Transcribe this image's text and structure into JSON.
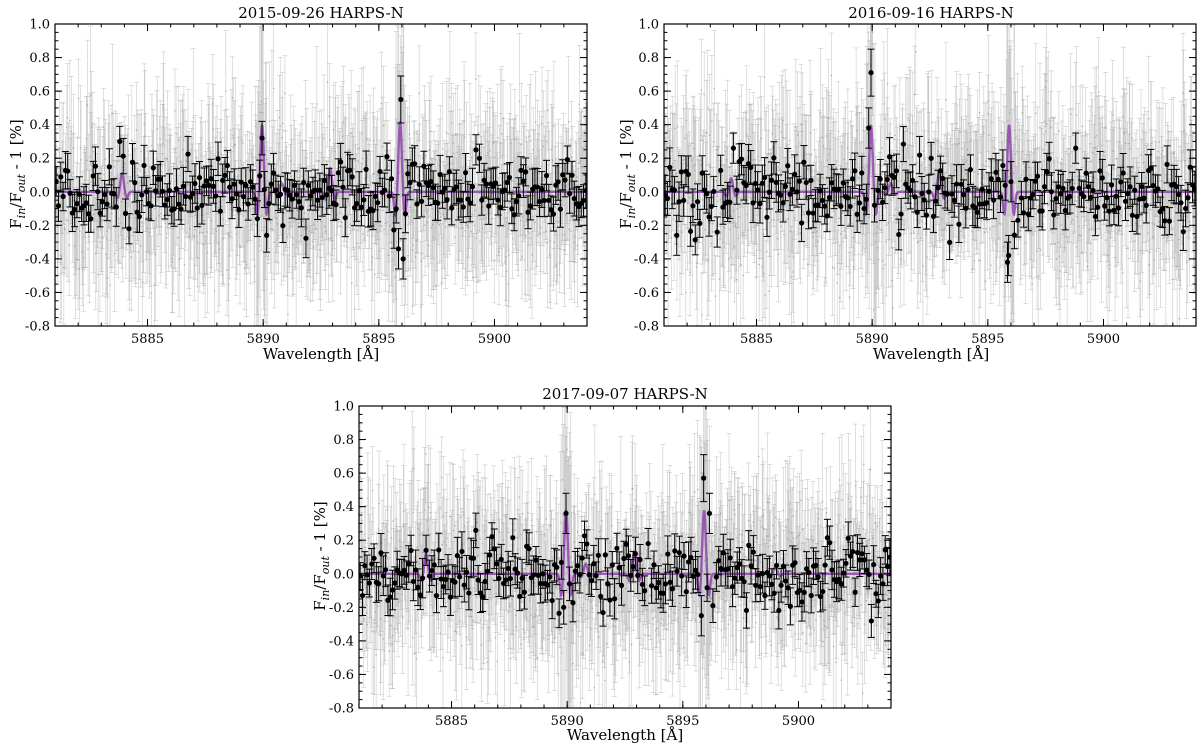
{
  "chart_data": [
    {
      "type": "scatter",
      "title": "2015-09-26 HARPS-N",
      "xlabel": "Wavelength [Å]",
      "ylabel": "F_in/F_out - 1 [%]",
      "xlim": [
        5881,
        5904
      ],
      "ylim": [
        -0.8,
        1.0
      ],
      "xticks": [
        5885,
        5890,
        5895,
        5900
      ],
      "yticks": [
        -0.8,
        -0.6,
        -0.4,
        -0.2,
        0.0,
        0.2,
        0.4,
        0.6,
        0.8,
        1.0
      ],
      "grid": false,
      "series": [
        {
          "kind": "unbinned",
          "color": "#a0a0a0",
          "noise": 0.24,
          "errorbar": 0.32,
          "seed": 11
        },
        {
          "kind": "binned",
          "color": "#000000",
          "bin_width": 0.1,
          "noise": 0.09,
          "errorbar": 0.1,
          "seed": 21
        },
        {
          "kind": "model",
          "color": "#8e44ad"
        }
      ],
      "features": [
        {
          "center": 5883.9,
          "amp": 0.11
        },
        {
          "center": 5889.95,
          "amp": 0.4
        },
        {
          "center": 5890.8,
          "amp": 0.05
        },
        {
          "center": 5892.9,
          "amp": 0.14
        },
        {
          "center": 5895.92,
          "amp": 0.42
        }
      ],
      "highlights": [
        {
          "x": 5889.95,
          "y": 0.32,
          "err": 0.1
        },
        {
          "x": 5890.15,
          "y": -0.26,
          "err": 0.1
        },
        {
          "x": 5895.85,
          "y": -0.34,
          "err": 0.12
        },
        {
          "x": 5895.95,
          "y": 0.55,
          "err": 0.14
        },
        {
          "x": 5896.05,
          "y": -0.4,
          "err": 0.12
        },
        {
          "x": 5883.8,
          "y": 0.3,
          "err": 0.09
        },
        {
          "x": 5884.2,
          "y": -0.22,
          "err": 0.09
        },
        {
          "x": 5899.2,
          "y": 0.25,
          "err": 0.09
        }
      ]
    },
    {
      "type": "scatter",
      "title": "2016-09-16 HARPS-N",
      "xlabel": "Wavelength [Å]",
      "ylabel": "F_in/F_out - 1 [%]",
      "xlim": [
        5881,
        5904
      ],
      "ylim": [
        -0.8,
        1.0
      ],
      "xticks": [
        5885,
        5890,
        5895,
        5900
      ],
      "yticks": [
        -0.8,
        -0.6,
        -0.4,
        -0.2,
        0.0,
        0.2,
        0.4,
        0.6,
        0.8,
        1.0
      ],
      "grid": false,
      "series": [
        {
          "kind": "unbinned",
          "color": "#a0a0a0",
          "noise": 0.25,
          "errorbar": 0.32,
          "seed": 33
        },
        {
          "kind": "binned",
          "color": "#000000",
          "bin_width": 0.1,
          "noise": 0.1,
          "errorbar": 0.1,
          "seed": 44
        },
        {
          "kind": "model",
          "color": "#8e44ad"
        }
      ],
      "features": [
        {
          "center": 5883.9,
          "amp": 0.08
        },
        {
          "center": 5889.95,
          "amp": 0.4
        },
        {
          "center": 5890.8,
          "amp": 0.05
        },
        {
          "center": 5892.9,
          "amp": 0.12
        },
        {
          "center": 5895.92,
          "amp": 0.4
        }
      ],
      "highlights": [
        {
          "x": 5889.95,
          "y": 0.71,
          "err": 0.14
        },
        {
          "x": 5889.85,
          "y": 0.38,
          "err": 0.12
        },
        {
          "x": 5890.1,
          "y": -0.08,
          "err": 0.1
        },
        {
          "x": 5895.85,
          "y": -0.42,
          "err": 0.12
        },
        {
          "x": 5895.9,
          "y": -0.38,
          "err": 0.12
        },
        {
          "x": 5896.0,
          "y": 0.06,
          "err": 0.12
        },
        {
          "x": 5896.3,
          "y": -0.17,
          "err": 0.1
        },
        {
          "x": 5884.0,
          "y": 0.26,
          "err": 0.09
        },
        {
          "x": 5898.8,
          "y": 0.26,
          "err": 0.09
        },
        {
          "x": 5883.3,
          "y": -0.24,
          "err": 0.09
        }
      ]
    },
    {
      "type": "scatter",
      "title": "2017-09-07 HARPS-N",
      "xlabel": "Wavelength [Å]",
      "ylabel": "F_in/F_out - 1 [%]",
      "xlim": [
        5881,
        5904
      ],
      "ylim": [
        -0.8,
        1.0
      ],
      "xticks": [
        5885,
        5890,
        5895,
        5900
      ],
      "yticks": [
        -0.8,
        -0.6,
        -0.4,
        -0.2,
        0.0,
        0.2,
        0.4,
        0.6,
        0.8,
        1.0
      ],
      "grid": false,
      "series": [
        {
          "kind": "unbinned",
          "color": "#a0a0a0",
          "noise": 0.24,
          "errorbar": 0.32,
          "seed": 55
        },
        {
          "kind": "binned",
          "color": "#000000",
          "bin_width": 0.1,
          "noise": 0.09,
          "errorbar": 0.1,
          "seed": 66
        },
        {
          "kind": "model",
          "color": "#8e44ad"
        }
      ],
      "features": [
        {
          "center": 5883.9,
          "amp": 0.12
        },
        {
          "center": 5889.95,
          "amp": 0.38
        },
        {
          "center": 5890.8,
          "amp": 0.06
        },
        {
          "center": 5892.9,
          "amp": 0.13
        },
        {
          "center": 5895.92,
          "amp": 0.38
        },
        {
          "center": 5899.0,
          "amp": 0.04
        }
      ],
      "highlights": [
        {
          "x": 5889.95,
          "y": 0.36,
          "err": 0.12
        },
        {
          "x": 5889.85,
          "y": -0.2,
          "err": 0.1
        },
        {
          "x": 5890.1,
          "y": -0.06,
          "err": 0.1
        },
        {
          "x": 5895.9,
          "y": 0.57,
          "err": 0.14
        },
        {
          "x": 5895.8,
          "y": -0.25,
          "err": 0.12
        },
        {
          "x": 5896.15,
          "y": 0.36,
          "err": 0.12
        },
        {
          "x": 5896.3,
          "y": -0.19,
          "err": 0.1
        },
        {
          "x": 5883.9,
          "y": 0.14,
          "err": 0.09
        },
        {
          "x": 5893.5,
          "y": 0.18,
          "err": 0.09
        }
      ]
    }
  ]
}
